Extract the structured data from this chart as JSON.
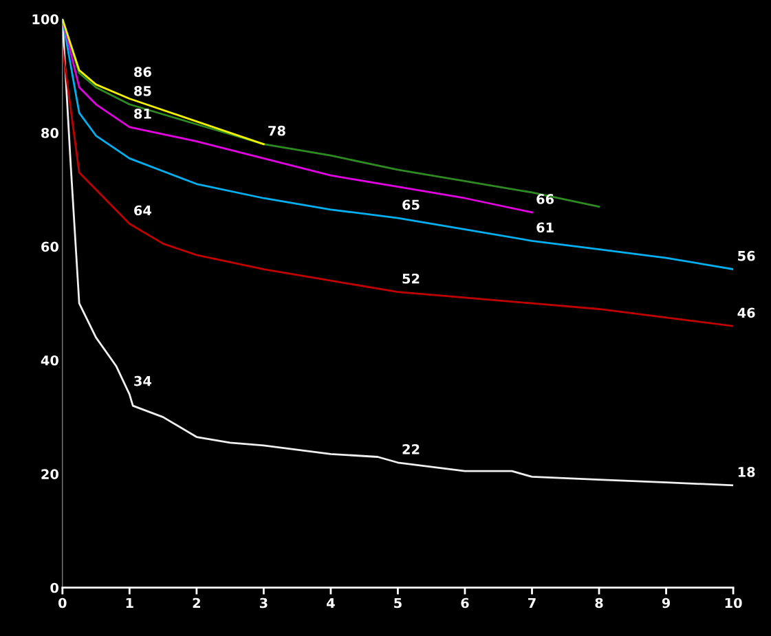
{
  "chart_data": {
    "type": "line",
    "xlim": [
      0,
      10
    ],
    "ylim": [
      0,
      100
    ],
    "xticks": [
      0,
      1,
      2,
      3,
      4,
      5,
      6,
      7,
      8,
      9,
      10
    ],
    "yticks": [
      0,
      20,
      40,
      60,
      80,
      100
    ],
    "marker": "none",
    "line_style": "solid",
    "series": [
      {
        "color": "#f0f0f0",
        "x": [
          0,
          0.12,
          0.25,
          0.5,
          0.8,
          1,
          1.05,
          1.5,
          2,
          2.5,
          3,
          4,
          4.7,
          5,
          6,
          6.7,
          7,
          8,
          9,
          10
        ],
        "values": [
          100,
          75,
          50,
          44,
          39,
          34,
          32,
          30,
          26.5,
          25.5,
          25,
          23.5,
          23,
          22,
          20.5,
          20.5,
          19.5,
          19,
          18.5,
          18
        ]
      },
      {
        "color": "#c00000",
        "x": [
          0,
          0.25,
          0.5,
          1,
          1.5,
          2,
          3,
          4,
          5,
          6,
          7,
          8,
          9,
          10
        ],
        "values": [
          95,
          73,
          70,
          64,
          60.5,
          58.5,
          56,
          54,
          52,
          51,
          50,
          49,
          47.5,
          46
        ]
      },
      {
        "color": "#00b0f0",
        "x": [
          0,
          0.25,
          0.5,
          1,
          2,
          3,
          4,
          5,
          6,
          7,
          8,
          9,
          10
        ],
        "values": [
          100,
          83.5,
          79.5,
          75.5,
          71,
          68.5,
          66.5,
          65,
          63,
          61,
          59.5,
          58,
          56
        ]
      },
      {
        "color": "#e000e0",
        "x": [
          0,
          0.25,
          0.5,
          1,
          2,
          3,
          4,
          5,
          6,
          7
        ],
        "values": [
          100,
          88,
          85,
          81,
          78.5,
          75.5,
          72.5,
          70.5,
          68.5,
          66
        ]
      },
      {
        "color": "#2e8b22",
        "x": [
          0,
          0.25,
          0.5,
          1,
          2,
          3,
          4,
          5,
          6,
          7,
          8
        ],
        "values": [
          100,
          90.5,
          88,
          85,
          81.5,
          78,
          76,
          73.5,
          71.5,
          69.5,
          67
        ]
      },
      {
        "color": "#f0f000",
        "x": [
          0,
          0.25,
          0.5,
          1,
          2,
          3
        ],
        "values": [
          100,
          91,
          88.5,
          86,
          82,
          78
        ]
      }
    ],
    "annotations": [
      {
        "text": "86",
        "x": 1,
        "y": 86
      },
      {
        "text": "85",
        "x": 1,
        "y": 85
      },
      {
        "text": "78",
        "x": 3,
        "y": 78
      },
      {
        "text": "81",
        "x": 1,
        "y": 81
      },
      {
        "text": "66",
        "x": 7,
        "y": 66
      },
      {
        "text": "65",
        "x": 5,
        "y": 65
      },
      {
        "text": "61",
        "x": 7,
        "y": 61
      },
      {
        "text": "64",
        "x": 1,
        "y": 64
      },
      {
        "text": "56",
        "x": 10,
        "y": 56
      },
      {
        "text": "52",
        "x": 5,
        "y": 52
      },
      {
        "text": "46",
        "x": 10,
        "y": 46
      },
      {
        "text": "34",
        "x": 1,
        "y": 34
      },
      {
        "text": "22",
        "x": 5,
        "y": 22
      },
      {
        "text": "18",
        "x": 10,
        "y": 18
      }
    ]
  }
}
